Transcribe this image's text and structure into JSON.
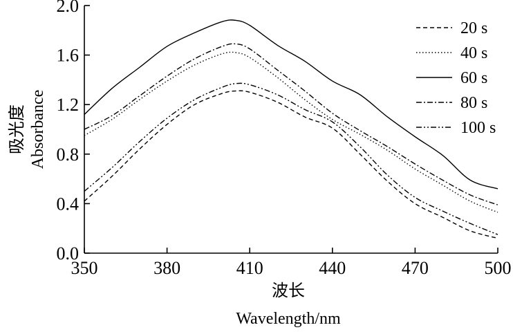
{
  "chart_data": {
    "type": "line",
    "xlabel_cn": "波长",
    "xlabel": "Wavelength/nm",
    "ylabel_cn": "吸光度",
    "ylabel": "Absorbance",
    "xlim": [
      350,
      500
    ],
    "ylim": [
      0.0,
      2.0
    ],
    "xticks": [
      350,
      380,
      410,
      440,
      470,
      500
    ],
    "xtick_labels": [
      "350",
      "380",
      "410",
      "440",
      "470",
      "500"
    ],
    "yticks": [
      0.0,
      0.4,
      0.8,
      1.2,
      1.6,
      2.0
    ],
    "ytick_labels": [
      "0.0",
      "0.4",
      "0.8",
      "1.2",
      "1.6",
      "2.0"
    ],
    "legend_position": "top-right",
    "x": [
      350,
      360,
      370,
      380,
      390,
      400,
      405,
      410,
      420,
      430,
      440,
      450,
      460,
      470,
      480,
      490,
      500
    ],
    "series": [
      {
        "name": "20 s",
        "dash": "dashed",
        "values": [
          0.42,
          0.62,
          0.84,
          1.04,
          1.2,
          1.29,
          1.31,
          1.3,
          1.22,
          1.1,
          1.01,
          0.8,
          0.58,
          0.4,
          0.29,
          0.18,
          0.12
        ]
      },
      {
        "name": "40 s",
        "dash": "dotted",
        "values": [
          0.95,
          1.08,
          1.24,
          1.39,
          1.52,
          1.61,
          1.62,
          1.58,
          1.42,
          1.24,
          1.08,
          0.96,
          0.83,
          0.68,
          0.55,
          0.42,
          0.33
        ]
      },
      {
        "name": "60 s",
        "dash": "solid",
        "values": [
          1.12,
          1.33,
          1.5,
          1.67,
          1.78,
          1.87,
          1.88,
          1.84,
          1.68,
          1.55,
          1.39,
          1.28,
          1.1,
          0.94,
          0.79,
          0.59,
          0.52
        ]
      },
      {
        "name": "80 s",
        "dash": "dashdot",
        "values": [
          1.0,
          1.11,
          1.27,
          1.43,
          1.57,
          1.67,
          1.69,
          1.65,
          1.48,
          1.31,
          1.13,
          0.99,
          0.86,
          0.72,
          0.59,
          0.47,
          0.39
        ]
      },
      {
        "name": "100 s",
        "dash": "dashdotdot",
        "values": [
          0.5,
          0.69,
          0.9,
          1.09,
          1.24,
          1.34,
          1.37,
          1.36,
          1.28,
          1.16,
          1.06,
          0.86,
          0.63,
          0.45,
          0.34,
          0.24,
          0.15
        ]
      }
    ]
  }
}
